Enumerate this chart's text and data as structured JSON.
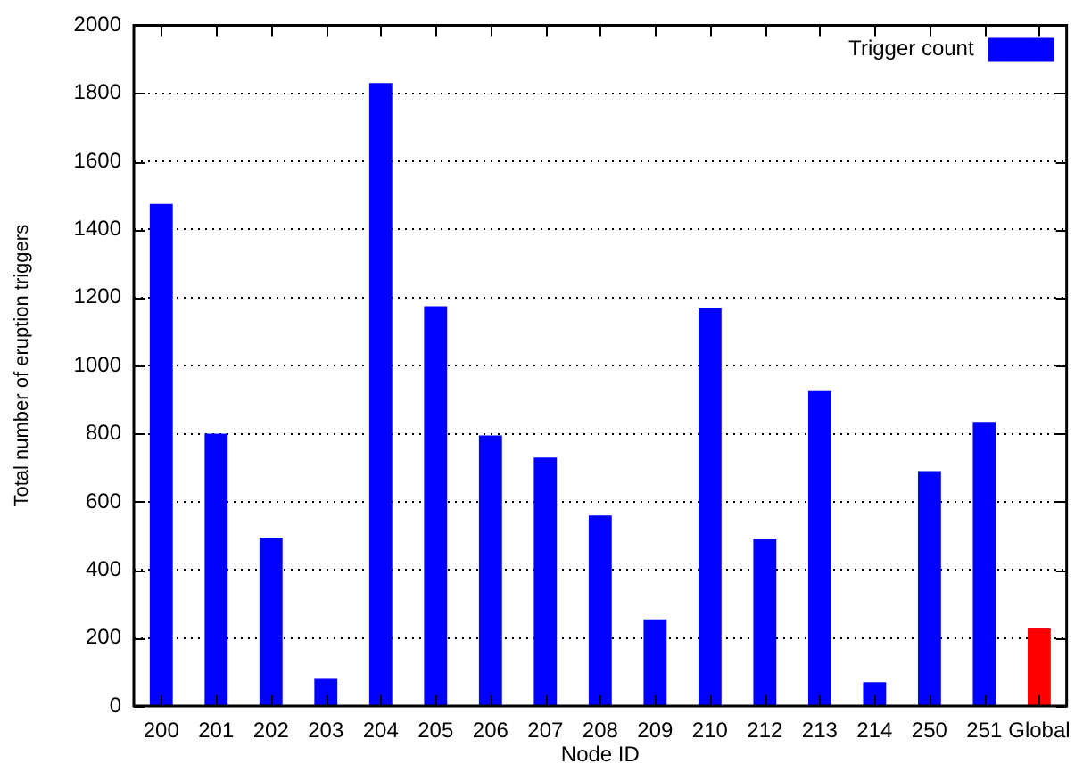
{
  "chart_data": {
    "type": "bar",
    "xlabel": "Node ID",
    "ylabel": "Total number of eruption triggers",
    "categories": [
      "200",
      "201",
      "202",
      "203",
      "204",
      "205",
      "206",
      "207",
      "208",
      "209",
      "210",
      "212",
      "213",
      "214",
      "250",
      "251",
      "Global"
    ],
    "series": [
      {
        "name": "Trigger count",
        "color": "#0000ff",
        "colors": [
          "#0000ff",
          "#0000ff",
          "#0000ff",
          "#0000ff",
          "#0000ff",
          "#0000ff",
          "#0000ff",
          "#0000ff",
          "#0000ff",
          "#0000ff",
          "#0000ff",
          "#0000ff",
          "#0000ff",
          "#0000ff",
          "#0000ff",
          "#0000ff",
          "#ff0000"
        ],
        "values": [
          1475,
          800,
          495,
          80,
          1830,
          1175,
          795,
          730,
          560,
          255,
          1170,
          490,
          925,
          70,
          690,
          835,
          228
        ]
      }
    ],
    "ylim": [
      0,
      2000
    ],
    "yticks": [
      0,
      200,
      400,
      600,
      800,
      1000,
      1200,
      1400,
      1600,
      1800,
      2000
    ],
    "grid": "y",
    "legend": "top right"
  }
}
